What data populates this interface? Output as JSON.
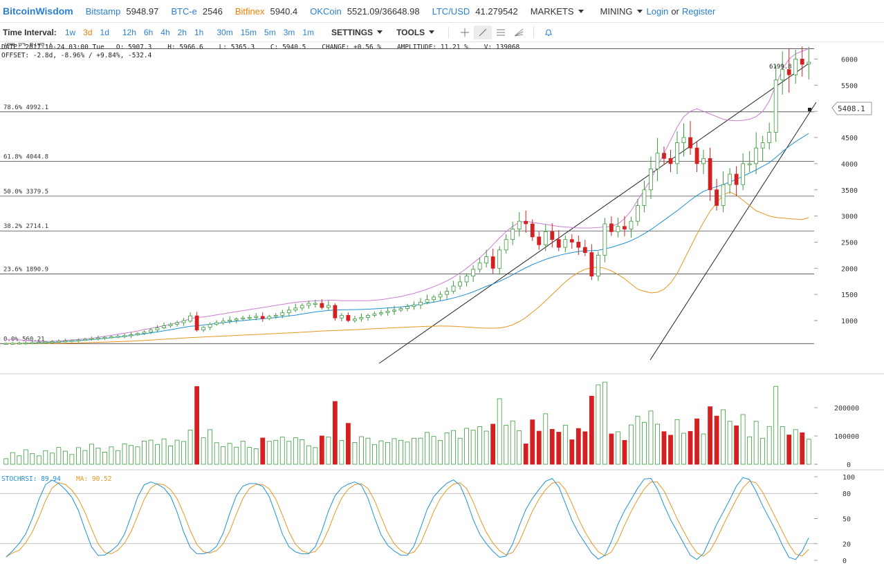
{
  "header": {
    "brand": "BitcoinWisdom",
    "exchanges": [
      {
        "name": "Bitstamp",
        "price": "5948.97",
        "color": "#2a7fd4"
      },
      {
        "name": "BTC-e",
        "price": "2546",
        "color": "#2a7fd4"
      },
      {
        "name": "Bitfinex",
        "price": "5940.4",
        "color": "#f07d00"
      },
      {
        "name": "OKCoin",
        "price": "5521.09/36648.98",
        "color": "#2a7fd4"
      },
      {
        "name": "LTC/USD",
        "price": "41.279542",
        "color": "#2a7fd4"
      }
    ],
    "markets": "MARKETS",
    "mining": "MINING",
    "login": "Login",
    "or": "or",
    "register": "Register"
  },
  "toolbar": {
    "label": "Time Interval:",
    "intervals": [
      "1w",
      "3d",
      "1d",
      "12h",
      "6h",
      "4h",
      "2h",
      "1h",
      "30m",
      "15m",
      "5m",
      "3m",
      "1m"
    ],
    "active_interval": "3d",
    "settings": "SETTINGS",
    "tools": "TOOLS",
    "tool_icons": [
      "crosshair-icon",
      "line-draw-icon",
      "fib-lines-icon",
      "fan-icon",
      "bell-icon"
    ]
  },
  "info": {
    "line1": "DATE: 2017-10-24 03:00 Tue   O: 5907.3    H: 5966.6    L: 5365.3    C: 5940.5    CHANGE: +0.56 %    AMPLITUDE: 11.21 %    V: 139068",
    "line2": "OFFSET: -2.8d, -8.96% / +9.84%, -532.4"
  },
  "colors": {
    "up": "#3a9a3a",
    "down": "#d42020",
    "ma_blue": "#1e90d8",
    "ma_orange": "#e8961e",
    "ma_pink": "#c87fd0",
    "accent": "#2a7fd4"
  },
  "chart_data": [
    {
      "type": "candlestick",
      "fib_levels": [
        {
          "label": "100.0% 6198.7",
          "value": 6198.7
        },
        {
          "label": "78.6% 4992.1",
          "value": 4992.1
        },
        {
          "label": "61.8% 4044.8",
          "value": 4044.8
        },
        {
          "label": "50.0% 3379.5",
          "value": 3379.5
        },
        {
          "label": "38.2% 2714.1",
          "value": 2714.1
        },
        {
          "label": "23.6% 1890.9",
          "value": 1890.9
        },
        {
          "label": "0.0% 560.21",
          "value": 560.21
        }
      ],
      "yticks": [
        "6000",
        "5500",
        "5000",
        "4500",
        "4000",
        "3500",
        "3000",
        "2500",
        "2000",
        "1500",
        "1000"
      ],
      "ylim": [
        540,
        6420
      ],
      "last_price_label": "5408.1",
      "peak_label": "6199.8",
      "closes": [
        563,
        566,
        570,
        574,
        578,
        585,
        590,
        598,
        605,
        612,
        620,
        630,
        642,
        655,
        668,
        680,
        690,
        700,
        712,
        730,
        755,
        780,
        820,
        860,
        900,
        930,
        960,
        1000,
        1090,
        820,
        870,
        930,
        960,
        990,
        1010,
        1030,
        1050,
        1060,
        1080,
        1040,
        1080,
        1100,
        1150,
        1200,
        1240,
        1290,
        1330,
        1330,
        1250,
        1290,
        1050,
        1100,
        1000,
        1030,
        1060,
        1100,
        1130,
        1150,
        1180,
        1200,
        1230,
        1270,
        1300,
        1350,
        1400,
        1450,
        1500,
        1560,
        1660,
        1740,
        1850,
        1980,
        2100,
        2220,
        2000,
        2350,
        2550,
        2750,
        2900,
        2850,
        2600,
        2450,
        2700,
        2550,
        2400,
        2550,
        2500,
        2400,
        2300,
        1850,
        2250,
        2850,
        2700,
        2800,
        2750,
        2900,
        3200,
        3500,
        3900,
        4200,
        4100,
        4000,
        4400,
        4500,
        4300,
        4000,
        4100,
        3500,
        3200,
        3600,
        3800,
        3600,
        4000,
        4000,
        4300,
        4400,
        4600,
        5600,
        5800,
        5700,
        6000,
        5900,
        5940
      ],
      "opens": [
        560,
        563,
        566,
        570,
        574,
        578,
        585,
        590,
        598,
        605,
        612,
        620,
        630,
        642,
        655,
        668,
        680,
        690,
        700,
        712,
        730,
        755,
        780,
        820,
        860,
        900,
        930,
        960,
        990,
        1090,
        820,
        870,
        930,
        960,
        990,
        1010,
        1030,
        1050,
        1060,
        1080,
        1040,
        1080,
        1100,
        1150,
        1200,
        1240,
        1290,
        1330,
        1330,
        1250,
        1290,
        1050,
        1100,
        1000,
        1030,
        1060,
        1100,
        1130,
        1150,
        1180,
        1200,
        1230,
        1270,
        1300,
        1350,
        1400,
        1450,
        1500,
        1560,
        1660,
        1740,
        1850,
        1980,
        2100,
        2220,
        2000,
        2350,
        2550,
        2750,
        2900,
        2850,
        2600,
        2450,
        2700,
        2550,
        2400,
        2550,
        2500,
        2400,
        2300,
        1850,
        2250,
        2850,
        2700,
        2800,
        2750,
        2900,
        3200,
        3500,
        3900,
        4200,
        4100,
        4000,
        4400,
        4500,
        4300,
        4000,
        4100,
        3500,
        3200,
        3600,
        3800,
        3600,
        4000,
        4000,
        4300,
        4400,
        4600,
        5600,
        5800,
        5700,
        6000,
        5907
      ],
      "series": [
        {
          "name": "blue",
          "values": [
            560,
            562,
            564,
            567,
            570,
            574,
            578,
            583,
            590,
            598,
            606,
            615,
            625,
            636,
            648,
            660,
            673,
            686,
            700,
            715,
            730,
            747,
            765,
            784,
            805,
            825,
            848,
            870,
            890,
            900,
            915,
            930,
            945,
            960,
            975,
            988,
            1000,
            1012,
            1024,
            1034,
            1046,
            1058,
            1072,
            1088,
            1105,
            1125,
            1145,
            1165,
            1180,
            1195,
            1200,
            1206,
            1208,
            1210,
            1213,
            1218,
            1224,
            1232,
            1240,
            1250,
            1262,
            1276,
            1292,
            1310,
            1330,
            1352,
            1376,
            1402,
            1432,
            1466,
            1505,
            1550,
            1600,
            1655,
            1700,
            1750,
            1810,
            1875,
            1945,
            2010,
            2070,
            2120,
            2170,
            2210,
            2245,
            2275,
            2300,
            2320,
            2335,
            2335,
            2345,
            2370,
            2400,
            2440,
            2480,
            2530,
            2590,
            2660,
            2740,
            2830,
            2920,
            3010,
            3100,
            3200,
            3300,
            3390,
            3470,
            3520,
            3560,
            3600,
            3650,
            3700,
            3760,
            3820,
            3880,
            3950,
            4020,
            4120,
            4230,
            4330,
            4420,
            4500,
            4580
          ]
        },
        {
          "name": "orange",
          "values": [
            560,
            560,
            561,
            561,
            562,
            563,
            564,
            565,
            567,
            569,
            571,
            574,
            577,
            580,
            584,
            588,
            592,
            597,
            602,
            608,
            614,
            620,
            627,
            635,
            643,
            650,
            658,
            666,
            675,
            680,
            686,
            692,
            698,
            704,
            710,
            716,
            722,
            728,
            734,
            740,
            746,
            752,
            758,
            764,
            770,
            778,
            786,
            794,
            800,
            806,
            810,
            815,
            820,
            826,
            832,
            838,
            844,
            850,
            856,
            862,
            868,
            874,
            880,
            885,
            890,
            893,
            895,
            894,
            890,
            884,
            876,
            868,
            860,
            855,
            855,
            860,
            880,
            920,
            980,
            1060,
            1160,
            1260,
            1380,
            1500,
            1620,
            1740,
            1840,
            1920,
            1980,
            2010,
            2020,
            2000,
            1950,
            1880,
            1800,
            1700,
            1600,
            1560,
            1530,
            1540,
            1600,
            1720,
            1900,
            2150,
            2400,
            2650,
            2880,
            3090,
            3250,
            3400,
            3460,
            3400,
            3300,
            3200,
            3100,
            3050,
            3000,
            2970,
            2960,
            2950,
            2940,
            2930,
            2970
          ]
        },
        {
          "name": "pink",
          "values": [
            640,
            640,
            630,
            620,
            610,
            600,
            600,
            605,
            610,
            620,
            630,
            640,
            650,
            660,
            680,
            700,
            720,
            740,
            760,
            780,
            800,
            830,
            850,
            880,
            900,
            930,
            960,
            990,
            1040,
            1060,
            1070,
            1090,
            1110,
            1130,
            1150,
            1170,
            1190,
            1210,
            1230,
            1250,
            1270,
            1290,
            1310,
            1330,
            1350,
            1360,
            1370,
            1380,
            1380,
            1390,
            1390,
            1380,
            1380,
            1380,
            1380,
            1380,
            1390,
            1400,
            1420,
            1440,
            1460,
            1490,
            1520,
            1560,
            1600,
            1650,
            1700,
            1760,
            1830,
            1910,
            2000,
            2100,
            2200,
            2320,
            2450,
            2580,
            2700,
            2800,
            2880,
            2900,
            2880,
            2860,
            2840,
            2820,
            2800,
            2790,
            2780,
            2770,
            2770,
            2770,
            2780,
            2790,
            2800,
            2850,
            2950,
            3100,
            3300,
            3500,
            3700,
            3950,
            4200,
            4450,
            4700,
            4900,
            5000,
            5050,
            5000,
            4950,
            4900,
            4850,
            4830,
            4820,
            4830,
            4850,
            4900,
            5000,
            5200,
            5500,
            5800,
            6000,
            6100,
            6150,
            6200
          ]
        }
      ]
    },
    {
      "type": "bar",
      "name": "volume",
      "yticks": [
        "200000",
        "100000",
        "0"
      ],
      "ylim": [
        0,
        300000
      ]
    },
    {
      "type": "line",
      "name": "stochrsi",
      "label_k": "STOCHRSI: 89.94",
      "label_ma": "MA: 90.52",
      "yticks": [
        "100",
        "80",
        "50",
        "20",
        "0"
      ],
      "ylim": [
        0,
        100
      ]
    }
  ]
}
